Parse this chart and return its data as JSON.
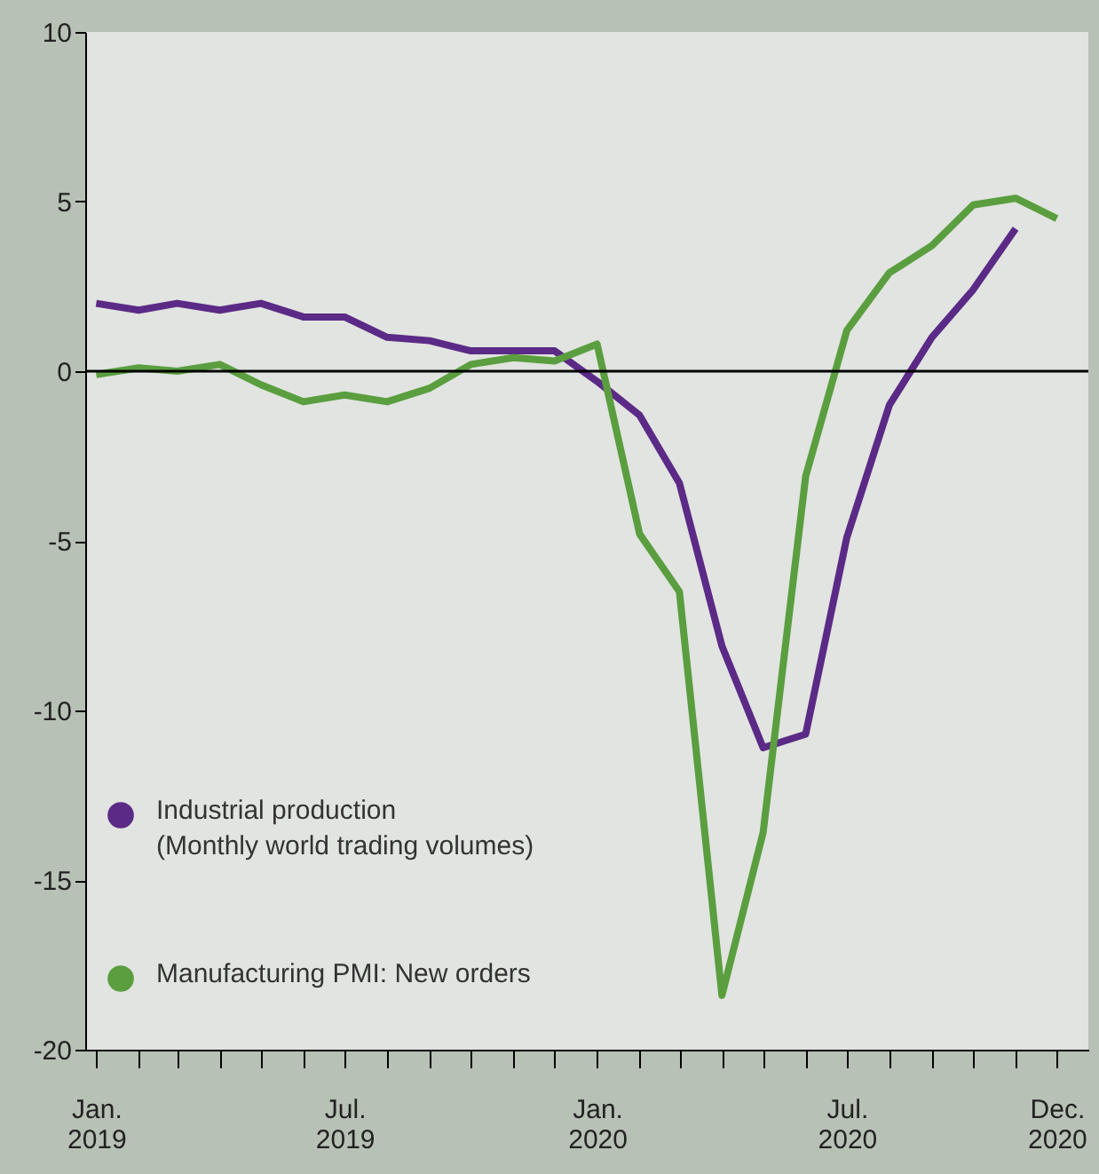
{
  "chart_data": {
    "type": "line",
    "x": [
      "2019-01",
      "2019-02",
      "2019-03",
      "2019-04",
      "2019-05",
      "2019-06",
      "2019-07",
      "2019-08",
      "2019-09",
      "2019-10",
      "2019-11",
      "2019-12",
      "2020-01",
      "2020-02",
      "2020-03",
      "2020-04",
      "2020-05",
      "2020-06",
      "2020-07",
      "2020-08",
      "2020-09",
      "2020-10",
      "2020-11",
      "2020-12"
    ],
    "series": [
      {
        "name": "Industrial production (Monthly world trading volumes)",
        "color": "#5b2a86",
        "values": [
          2.0,
          1.8,
          2.0,
          1.8,
          2.0,
          1.6,
          1.6,
          1.0,
          0.9,
          0.6,
          0.6,
          0.6,
          -0.3,
          -1.3,
          -3.3,
          -8.1,
          -11.1,
          -10.7,
          -4.9,
          -1.0,
          1.0,
          2.4,
          4.2,
          null
        ]
      },
      {
        "name": "Manufacturing PMI: New orders",
        "color": "#5a9e3f",
        "values": [
          -0.1,
          0.1,
          0.0,
          0.2,
          -0.4,
          -0.9,
          -0.7,
          -0.9,
          -0.5,
          0.2,
          0.4,
          0.3,
          0.8,
          -4.8,
          -6.5,
          -18.4,
          -13.6,
          -3.1,
          1.2,
          2.9,
          3.7,
          4.9,
          5.1,
          4.5
        ]
      }
    ],
    "ylim": [
      -20,
      10
    ],
    "yticks": [
      -20,
      -15,
      -10,
      -5,
      0,
      5,
      10
    ],
    "xlim": [
      "2018-12-24",
      "2020-12-24"
    ],
    "xticks": [
      {
        "value": "2019-01",
        "label": "Jan. 2019"
      },
      {
        "value": "2019-02",
        "label": null
      },
      {
        "value": "2019-03",
        "label": null
      },
      {
        "value": "2019-04",
        "label": null
      },
      {
        "value": "2019-05",
        "label": null
      },
      {
        "value": "2019-06",
        "label": null
      },
      {
        "value": "2019-07",
        "label": "Jul. 2019"
      },
      {
        "value": "2019-08",
        "label": null
      },
      {
        "value": "2019-09",
        "label": null
      },
      {
        "value": "2019-10",
        "label": null
      },
      {
        "value": "2019-11",
        "label": null
      },
      {
        "value": "2019-12",
        "label": null
      },
      {
        "value": "2020-01",
        "label": "Jan. 2020"
      },
      {
        "value": "2020-02",
        "label": null
      },
      {
        "value": "2020-03",
        "label": null
      },
      {
        "value": "2020-04",
        "label": null
      },
      {
        "value": "2020-05",
        "label": null
      },
      {
        "value": "2020-06",
        "label": null
      },
      {
        "value": "2020-07",
        "label": "Jul. 2020"
      },
      {
        "value": "2020-08",
        "label": null
      },
      {
        "value": "2020-09",
        "label": null
      },
      {
        "value": "2020-10",
        "label": null
      },
      {
        "value": "2020-11",
        "label": null
      },
      {
        "value": "2020-12",
        "label": "Dec. 2020"
      }
    ],
    "ref_lines": [
      {
        "axis": "y",
        "value": 0,
        "color": "#000000"
      }
    ],
    "grid": false,
    "legend": "bottom left",
    "marker": "none",
    "line_style": "solid"
  }
}
